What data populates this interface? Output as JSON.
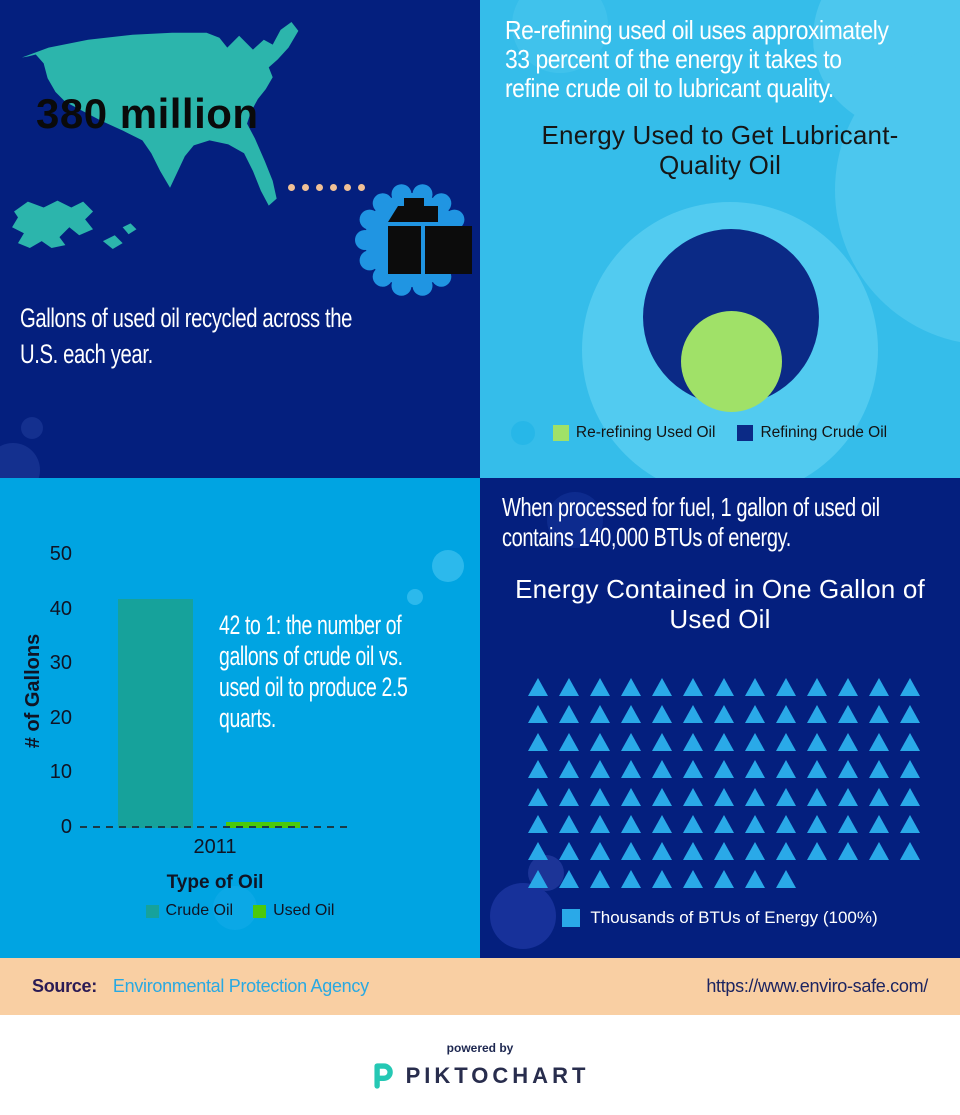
{
  "panels": {
    "recycled": {
      "stat": "380 million",
      "caption": "Gallons of used oil recycled across the\nU.S. each year."
    },
    "lubricant": {
      "paragraph": "Re-refining used oil uses approximately\n33 percent of the energy it takes to\nrefine crude oil to lubricant quality.",
      "title": "Energy Used to Get Lubricant-\nQuality Oil"
    },
    "barchart": {
      "stat_text": "42 to 1: the number of\ngallons of crude oil vs.\nused oil to produce 2.5\nquarts."
    },
    "btu": {
      "paragraph": "When processed for fuel, 1 gallon of used oil\ncontains 140,000 BTUs of energy.",
      "title": "Energy Contained in One Gallon of\nUsed Oil"
    }
  },
  "footer": {
    "source_label": "Source:",
    "source_name": "Environmental Protection Agency",
    "url": "https://www.enviro-safe.com/"
  },
  "branding": {
    "powered_by": "powered by",
    "brand_name": "PIKTOCHART"
  },
  "colors": {
    "navy_bg": "#041f7e",
    "cyan_bg": "#35bdea",
    "blue_bg": "#00a4e2",
    "map_teal": "#2cb5ac",
    "gear_blue": "#2095e2",
    "dot_peach": "#f0c096",
    "footer_peach": "#f9cfa3",
    "link_cyan": "#29a9e2",
    "brand_teal": "#25c8b4"
  },
  "chart_data": [
    {
      "type": "bubble",
      "title": "Energy Used to Get Lubricant-Quality Oil",
      "series": [
        {
          "name": "Re-refining Used Oil",
          "value": 33,
          "color": "#a0e168"
        },
        {
          "name": "Refining Crude Oil",
          "value": 100,
          "color": "#0b2a86"
        }
      ],
      "note": "Nested circles; inner green circle area is 33% of navy circle (percent of energy needed)."
    },
    {
      "type": "bar",
      "categories": [
        "2011"
      ],
      "series": [
        {
          "name": "Crude Oil",
          "values": [
            42
          ],
          "color": "#16a29b"
        },
        {
          "name": "Used Oil",
          "values": [
            1
          ],
          "color": "#4cc90a"
        }
      ],
      "xlabel": "Type of Oil",
      "ylabel": "# of Gallons",
      "ylim": [
        0,
        50
      ],
      "yticks": [
        0,
        10,
        20,
        30,
        40,
        50
      ],
      "legend_position": "bottom"
    },
    {
      "type": "pictograph",
      "title": "Energy Contained in One Gallon of Used Oil",
      "icon": "triangle",
      "icon_color": "#2aa9e8",
      "total_icons": 100,
      "rows": [
        13,
        13,
        13,
        13,
        13,
        13,
        13,
        9
      ],
      "legend": "Thousands of BTUs of Energy (100%)"
    }
  ]
}
